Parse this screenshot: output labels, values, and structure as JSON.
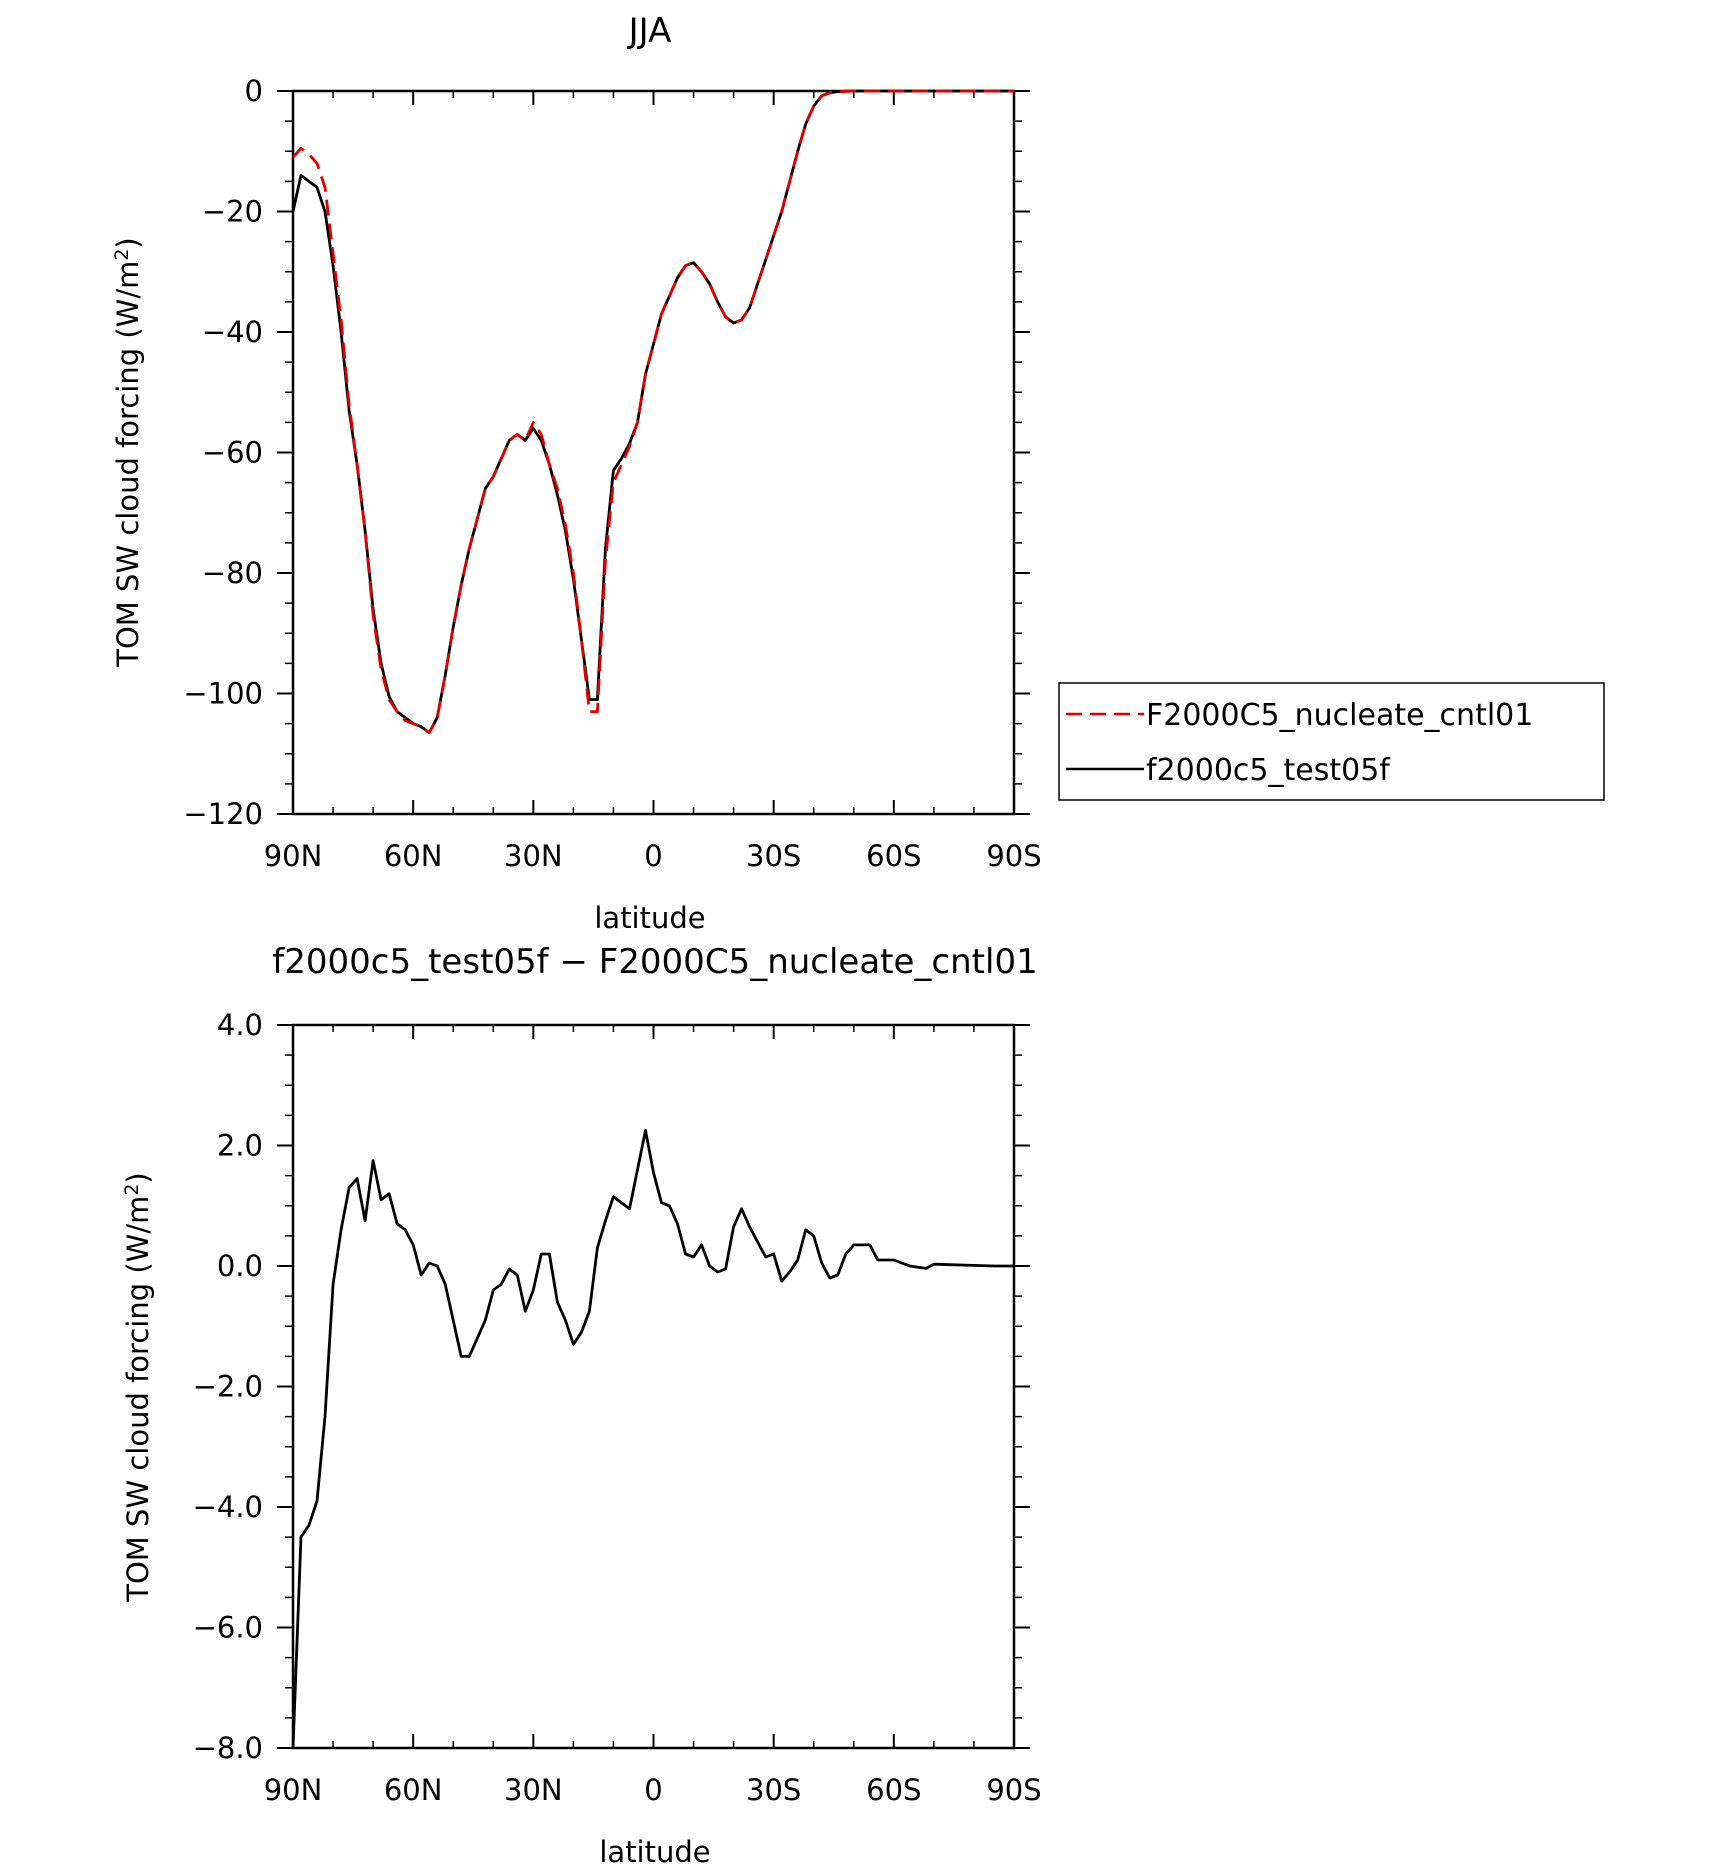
{
  "chart_data": [
    {
      "type": "line",
      "title": "JJA",
      "xlabel": "latitude",
      "ylabel": "TOM SW cloud forcing (W/m",
      "ylabel_sup": "2",
      "ylabel_close": ")",
      "xlim": [
        90,
        -90
      ],
      "ylim": [
        -120,
        0
      ],
      "x_ticks": [
        90,
        60,
        30,
        0,
        -30,
        -60,
        -90
      ],
      "x_tick_labels": [
        "90N",
        "60N",
        "30N",
        "0",
        "30S",
        "60S",
        "90S"
      ],
      "y_ticks": [
        0,
        -20,
        -40,
        -60,
        -80,
        -100,
        -120
      ],
      "y_tick_labels": [
        "0",
        "−20",
        "−40",
        "−60",
        "−80",
        "−100",
        "−120"
      ],
      "grid": false,
      "legend": "right",
      "series": [
        {
          "name": "F2000C5_nucleate_cntl01",
          "color": "#e00000",
          "dash": "dashed",
          "x": [
            90,
            88,
            86,
            84,
            82,
            80,
            78,
            76,
            74,
            72,
            70,
            68,
            66,
            64,
            62,
            60,
            58,
            56,
            54,
            52,
            50,
            48,
            46,
            44,
            42,
            40,
            38,
            36,
            34,
            32,
            30,
            28,
            26,
            24,
            22,
            20,
            18,
            16,
            14,
            12,
            10,
            8,
            6,
            4,
            2,
            0,
            -2,
            -4,
            -6,
            -8,
            -10,
            -12,
            -14,
            -16,
            -18,
            -20,
            -22,
            -24,
            -26,
            -28,
            -30,
            -32,
            -34,
            -36,
            -38,
            -40,
            -42,
            -44,
            -46,
            -48,
            -50,
            -52,
            -54,
            -56,
            -58,
            -60,
            -62,
            -64,
            -66,
            -68,
            -70,
            -75,
            -80,
            -85,
            -90
          ],
          "y": [
            -11,
            -9.5,
            -10.5,
            -12,
            -16,
            -27,
            -38,
            -52,
            -62,
            -73,
            -87,
            -96,
            -101,
            -103,
            -104.5,
            -105,
            -105.5,
            -106.5,
            -104,
            -97,
            -89,
            -82,
            -76,
            -71,
            -66,
            -64,
            -61,
            -58,
            -57,
            -58,
            -55,
            -57,
            -62,
            -66,
            -72,
            -80,
            -91,
            -103,
            -103,
            -78,
            -65,
            -62,
            -59,
            -55,
            -47,
            -42,
            -37,
            -34,
            -31,
            -29,
            -28.5,
            -30,
            -32,
            -35,
            -37.5,
            -38.5,
            -38,
            -36,
            -32,
            -28,
            -24,
            -20,
            -15,
            -10,
            -5.5,
            -2.5,
            -0.8,
            -0.3,
            -0.1,
            -0.05,
            0,
            0,
            0,
            0,
            0,
            0,
            0,
            0,
            0,
            0,
            0,
            0,
            0,
            0,
            0
          ]
        },
        {
          "name": "f2000c5_test05f",
          "color": "#000000",
          "dash": "solid",
          "x": [
            90,
            88,
            86,
            84,
            82,
            80,
            78,
            76,
            74,
            72,
            70,
            68,
            66,
            64,
            62,
            60,
            58,
            56,
            54,
            52,
            50,
            48,
            46,
            44,
            42,
            40,
            38,
            36,
            34,
            32,
            30,
            28,
            26,
            24,
            22,
            20,
            18,
            16,
            14,
            12,
            10,
            8,
            6,
            4,
            2,
            0,
            -2,
            -4,
            -6,
            -8,
            -10,
            -12,
            -14,
            -16,
            -18,
            -20,
            -22,
            -24,
            -26,
            -28,
            -30,
            -32,
            -34,
            -36,
            -38,
            -40,
            -42,
            -44,
            -46,
            -48,
            -50,
            -52,
            -54,
            -56,
            -58,
            -60,
            -62,
            -64,
            -66,
            -68,
            -70,
            -75,
            -80,
            -85,
            -90
          ],
          "y": [
            -20,
            -14,
            -15,
            -16,
            -20,
            -29,
            -40,
            -53,
            -62,
            -73,
            -86,
            -95,
            -100.5,
            -103,
            -104,
            -105,
            -105.5,
            -106.5,
            -104,
            -97,
            -89,
            -82,
            -76,
            -71,
            -66,
            -64,
            -61,
            -58,
            -57,
            -58,
            -56,
            -58,
            -62,
            -67,
            -73,
            -81,
            -91,
            -101,
            -101,
            -76,
            -63,
            -61,
            -58.5,
            -55,
            -47,
            -42,
            -37,
            -34,
            -31,
            -29,
            -28.5,
            -30,
            -32,
            -35,
            -37.5,
            -38.5,
            -38,
            -36,
            -32,
            -28,
            -24,
            -20,
            -15,
            -10,
            -5.5,
            -2.5,
            -0.8,
            -0.3,
            -0.1,
            -0.05,
            0,
            0,
            0,
            0,
            0,
            0,
            0,
            0,
            0,
            0,
            0,
            0,
            0,
            0,
            0
          ]
        }
      ]
    },
    {
      "type": "line",
      "title": "f2000c5_test05f − F2000C5_nucleate_cntl01",
      "xlabel": "latitude",
      "ylabel": "TOM SW cloud forcing (W/m",
      "ylabel_sup": "2",
      "ylabel_close": ")",
      "xlim": [
        90,
        -90
      ],
      "ylim": [
        -8,
        4
      ],
      "x_ticks": [
        90,
        60,
        30,
        0,
        -30,
        -60,
        -90
      ],
      "x_tick_labels": [
        "90N",
        "60N",
        "30N",
        "0",
        "30S",
        "60S",
        "90S"
      ],
      "y_ticks": [
        4,
        2,
        0,
        -2,
        -4,
        -6,
        -8
      ],
      "y_tick_labels": [
        "4.0",
        "2.0",
        "0.0",
        "−2.0",
        "−4.0",
        "−6.0",
        "−8.0"
      ],
      "grid": false,
      "series": [
        {
          "color": "#000000",
          "dash": "solid",
          "x": [
            90,
            88,
            86,
            84,
            82,
            80,
            78,
            76,
            74,
            72,
            70,
            68,
            66,
            64,
            62,
            60,
            58,
            56,
            54,
            52,
            50,
            48,
            46,
            44,
            42,
            40,
            38,
            36,
            34,
            32,
            30,
            28,
            26,
            24,
            22,
            20,
            18,
            16,
            14,
            12,
            10,
            8,
            6,
            4,
            2,
            0,
            -2,
            -4,
            -6,
            -8,
            -10,
            -12,
            -14,
            -16,
            -18,
            -20,
            -22,
            -24,
            -26,
            -28,
            -30,
            -32,
            -34,
            -36,
            -38,
            -40,
            -42,
            -44,
            -46,
            -48,
            -50,
            -52,
            -54,
            -56,
            -58,
            -60,
            -62,
            -64,
            -66,
            -68,
            -70,
            -75,
            -80,
            -85,
            -90
          ],
          "y": [
            -8,
            -4.5,
            -4.3,
            -3.9,
            -2.5,
            -0.3,
            0.6,
            1.3,
            1.45,
            0.75,
            1.75,
            1.1,
            1.2,
            0.7,
            0.6,
            0.35,
            -0.15,
            0.05,
            0.0,
            -0.3,
            -0.9,
            -1.5,
            -1.5,
            -1.2,
            -0.9,
            -0.4,
            -0.3,
            -0.05,
            -0.15,
            -0.75,
            -0.4,
            0.2,
            0.2,
            -0.6,
            -0.9,
            -1.3,
            -1.1,
            -0.75,
            0.3,
            0.75,
            1.15,
            1.05,
            0.95,
            1.6,
            2.25,
            1.55,
            1.05,
            1.0,
            0.7,
            0.2,
            0.15,
            0.35,
            0.0,
            -0.1,
            -0.05,
            0.65,
            0.95,
            0.65,
            0.4,
            0.15,
            0.2,
            -0.25,
            -0.1,
            0.1,
            0.6,
            0.5,
            0.05,
            -0.2,
            -0.15,
            0.2,
            0.35,
            0.35,
            0.35,
            0.1,
            0.1,
            0.1,
            0.05,
            0.0,
            -0.02,
            -0.04,
            0.03,
            0.02,
            0.01,
            0.0,
            0.0
          ]
        }
      ]
    }
  ]
}
